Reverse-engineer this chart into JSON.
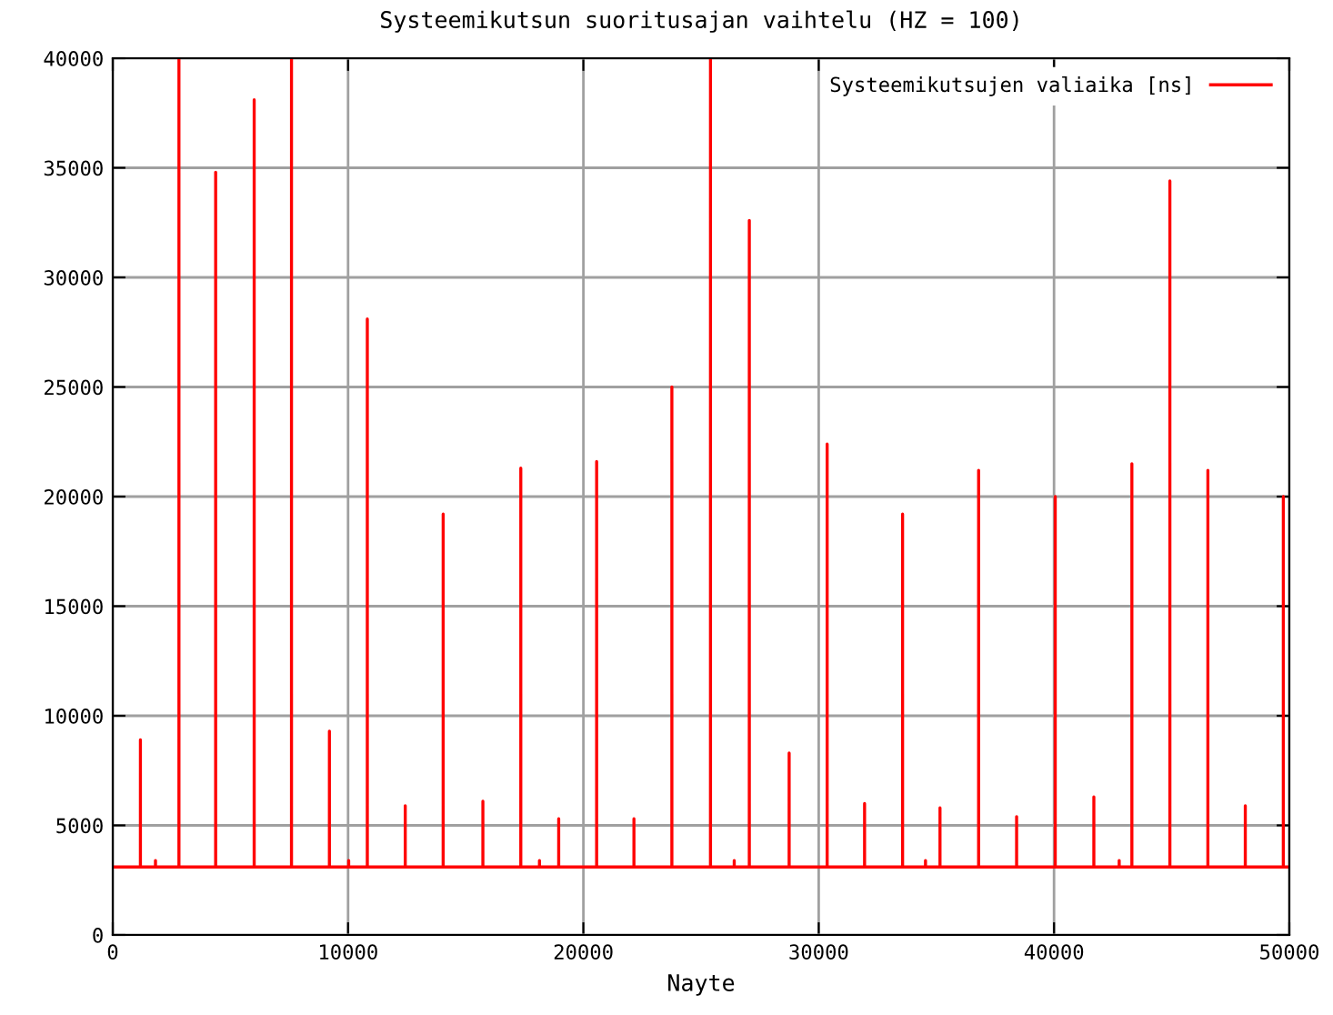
{
  "chart_data": {
    "type": "line",
    "title": "Systeemikutsun suoritusajan vaihtelu (HZ = 100)",
    "xlabel": "Nayte",
    "series": [
      {
        "name": "Systeemikutsujen valiaika [ns]",
        "color": "#ff0000",
        "x": [
          0,
          1175,
          1176,
          1177,
          1815,
          1816,
          1817,
          2812,
          2813,
          2814,
          4372,
          4373,
          4374,
          6009,
          6010,
          6011,
          7595,
          7596,
          7597,
          9206,
          9207,
          9208,
          10025,
          10026,
          10027,
          10817,
          10818,
          10819,
          12429,
          12430,
          12431,
          14040,
          14041,
          14042,
          15728,
          15729,
          15730,
          17339,
          17340,
          17341,
          18132,
          18133,
          18134,
          18950,
          18951,
          18952,
          20562,
          20563,
          20564,
          22147,
          22148,
          22149,
          23759,
          23760,
          23761,
          25400,
          25401,
          25402,
          26409,
          26410,
          26411,
          27050,
          27051,
          27052,
          28743,
          28744,
          28745,
          30358,
          30359,
          30360,
          31948,
          31949,
          31950,
          33563,
          33564,
          33565,
          34537,
          34538,
          34539,
          35153,
          35154,
          35155,
          36794,
          36795,
          36796,
          38409,
          38410,
          38411,
          40050,
          40051,
          40052,
          41691,
          41692,
          41693,
          42768,
          42769,
          42770,
          43307,
          43308,
          43309,
          44922,
          44923,
          44924,
          46537,
          46538,
          46539,
          48127,
          48128,
          48129,
          49743,
          49744,
          49745,
          50000
        ],
        "values": [
          3100,
          3100,
          8900,
          3100,
          3100,
          3400,
          3100,
          3100,
          40000,
          3100,
          3100,
          34800,
          3100,
          3100,
          38100,
          3100,
          3100,
          40000,
          3100,
          3100,
          9300,
          3100,
          3100,
          3400,
          3100,
          3100,
          28100,
          3100,
          3100,
          5900,
          3100,
          3100,
          19200,
          3100,
          3100,
          6100,
          3100,
          3100,
          21300,
          3100,
          3100,
          3400,
          3100,
          3100,
          5300,
          3100,
          3100,
          21600,
          3100,
          3100,
          5300,
          3100,
          3100,
          25000,
          3100,
          3100,
          40000,
          3100,
          3100,
          3400,
          3100,
          3100,
          32600,
          3100,
          3100,
          8300,
          3100,
          3100,
          22400,
          3100,
          3100,
          6000,
          3100,
          3100,
          19200,
          3100,
          3100,
          3400,
          3100,
          3100,
          5800,
          3100,
          3100,
          21200,
          3100,
          3100,
          5400,
          3100,
          3100,
          20000,
          3100,
          3100,
          6300,
          3100,
          3100,
          3400,
          3100,
          3100,
          21500,
          3100,
          3100,
          34400,
          3100,
          3100,
          21200,
          3100,
          3100,
          5900,
          3100,
          3100,
          20000,
          3100,
          3100
        ]
      }
    ],
    "xlim": [
      0,
      50000
    ],
    "ylim": [
      0,
      40000
    ],
    "xticks": [
      0,
      10000,
      20000,
      30000,
      40000,
      50000
    ],
    "yticks": [
      0,
      5000,
      10000,
      15000,
      20000,
      25000,
      30000,
      35000,
      40000
    ],
    "grid": true,
    "legend": "top right",
    "line_style": "solid",
    "marker": "none"
  }
}
